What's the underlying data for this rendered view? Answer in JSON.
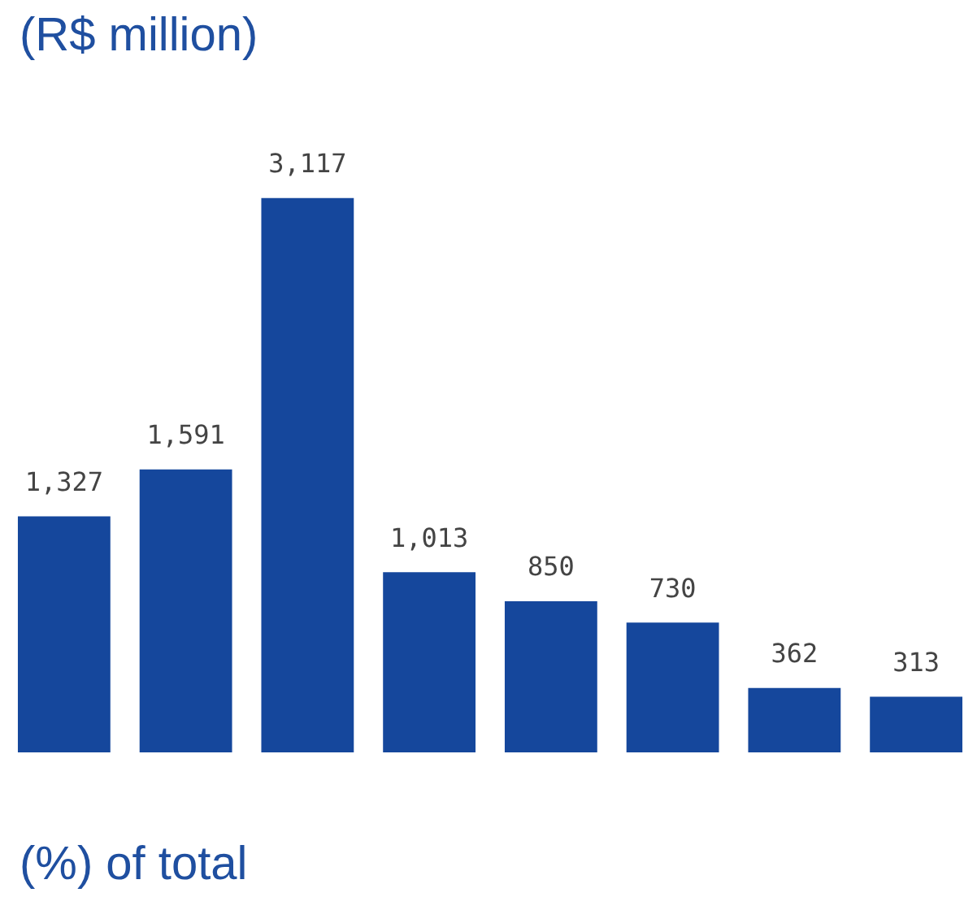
{
  "chart_data": {
    "type": "bar",
    "title": "(R$ million)",
    "categories": [
      null,
      null,
      null,
      null,
      null,
      null,
      null,
      null
    ],
    "values": [
      1327,
      1591,
      3117,
      1013,
      850,
      730,
      362,
      313
    ],
    "value_labels": [
      "1,327",
      "1,591",
      "3,117",
      "1,013",
      "850",
      "730",
      "362",
      "313"
    ],
    "color": "#15479c",
    "tick_labels": false,
    "annotations": [
      "(%) of total"
    ]
  }
}
